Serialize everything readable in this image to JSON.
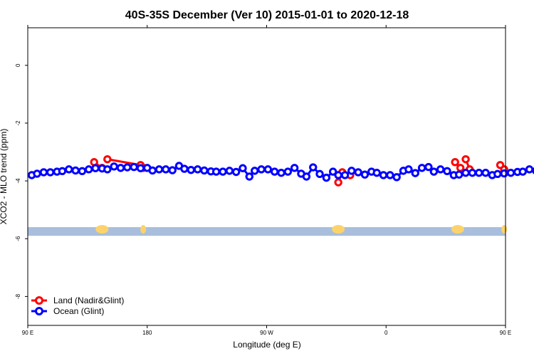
{
  "chart_data": {
    "type": "scatter",
    "title": "40S-35S December (Ver 10)   2015-01-01 to 2020-12-18",
    "xlabel": "Longitude (deg E)",
    "ylabel": "XCO2 - MLO trend (ppm)",
    "xlim": [
      90,
      450
    ],
    "ylim": [
      -9,
      1.3
    ],
    "x_ticks": [
      {
        "value": 90,
        "label": "90 E"
      },
      {
        "value": 180,
        "label": "180"
      },
      {
        "value": 270,
        "label": "90 W"
      },
      {
        "value": 360,
        "label": "0"
      },
      {
        "value": 450,
        "label": "90 E"
      }
    ],
    "x_ticks_top": [
      90,
      180,
      270,
      360,
      450
    ],
    "y_ticks": [
      {
        "value": 0,
        "label": "0"
      },
      {
        "value": -2,
        "label": "-2"
      },
      {
        "value": -4,
        "label": "-4"
      },
      {
        "value": -6,
        "label": "-6"
      },
      {
        "value": -8,
        "label": "-8"
      }
    ],
    "grid": false,
    "legend_position": "bottom-left",
    "colors": {
      "land": "#ff0000",
      "ocean": "#0000ff",
      "map_ocean": "#a8bedc",
      "map_land": "#fcd36b"
    },
    "map_strip": {
      "y_top": -5.6,
      "y_bottom": -5.9,
      "land_centers": [
        146,
        177,
        324,
        414,
        449
      ]
    },
    "series": [
      {
        "name": "Land (Nadir&Glint)",
        "key": "land",
        "segments": [
          [
            [
              140,
              -3.35
            ],
            [
              146,
              -3.55
            ]
          ],
          [
            [
              150,
              -3.25
            ],
            [
              175,
              -3.45
            ],
            [
              177,
              -3.55
            ]
          ],
          [
            [
              324,
              -4.05
            ],
            [
              327,
              -3.7
            ],
            [
              333,
              -3.8
            ]
          ],
          [
            [
              412,
              -3.35
            ],
            [
              416,
              -3.55
            ]
          ],
          [
            [
              420,
              -3.25
            ],
            [
              423,
              -3.6
            ]
          ],
          [
            [
              446,
              -3.45
            ],
            [
              449,
              -3.6
            ]
          ]
        ]
      },
      {
        "name": "Ocean (Glint)",
        "key": "ocean",
        "points": [
          [
            93,
            -3.8
          ],
          [
            97,
            -3.75
          ],
          [
            102,
            -3.7
          ],
          [
            107,
            -3.7
          ],
          [
            112,
            -3.68
          ],
          [
            116,
            -3.66
          ],
          [
            121,
            -3.6
          ],
          [
            126,
            -3.64
          ],
          [
            131,
            -3.66
          ],
          [
            136,
            -3.6
          ],
          [
            141,
            -3.56
          ],
          [
            146,
            -3.57
          ],
          [
            150,
            -3.6
          ],
          [
            155,
            -3.5
          ],
          [
            160,
            -3.55
          ],
          [
            165,
            -3.53
          ],
          [
            170,
            -3.52
          ],
          [
            175,
            -3.56
          ],
          [
            180,
            -3.55
          ],
          [
            184,
            -3.64
          ],
          [
            189,
            -3.6
          ],
          [
            194,
            -3.6
          ],
          [
            199,
            -3.63
          ],
          [
            204,
            -3.48
          ],
          [
            208,
            -3.58
          ],
          [
            213,
            -3.62
          ],
          [
            218,
            -3.6
          ],
          [
            223,
            -3.64
          ],
          [
            228,
            -3.67
          ],
          [
            232,
            -3.68
          ],
          [
            237,
            -3.68
          ],
          [
            242,
            -3.65
          ],
          [
            247,
            -3.69
          ],
          [
            252,
            -3.56
          ],
          [
            257,
            -3.85
          ],
          [
            261,
            -3.65
          ],
          [
            266,
            -3.6
          ],
          [
            271,
            -3.6
          ],
          [
            276,
            -3.68
          ],
          [
            281,
            -3.72
          ],
          [
            286,
            -3.68
          ],
          [
            291,
            -3.55
          ],
          [
            296,
            -3.75
          ],
          [
            300,
            -3.85
          ],
          [
            305,
            -3.53
          ],
          [
            310,
            -3.76
          ],
          [
            315,
            -3.89
          ],
          [
            320,
            -3.68
          ],
          [
            324,
            -3.8
          ],
          [
            329,
            -3.8
          ],
          [
            334,
            -3.65
          ],
          [
            339,
            -3.7
          ],
          [
            344,
            -3.78
          ],
          [
            349,
            -3.68
          ],
          [
            353,
            -3.72
          ],
          [
            358,
            -3.8
          ],
          [
            363,
            -3.8
          ],
          [
            368,
            -3.87
          ],
          [
            373,
            -3.65
          ],
          [
            377,
            -3.6
          ],
          [
            382,
            -3.73
          ],
          [
            387,
            -3.55
          ],
          [
            392,
            -3.52
          ],
          [
            396,
            -3.68
          ],
          [
            401,
            -3.6
          ],
          [
            406,
            -3.66
          ],
          [
            411,
            -3.8
          ],
          [
            415,
            -3.78
          ],
          [
            420,
            -3.72
          ],
          [
            425,
            -3.72
          ],
          [
            430,
            -3.72
          ],
          [
            435,
            -3.72
          ],
          [
            440,
            -3.8
          ],
          [
            444,
            -3.76
          ],
          [
            449,
            -3.74
          ],
          [
            454,
            -3.72
          ],
          [
            459,
            -3.69
          ],
          [
            463,
            -3.68
          ],
          [
            468,
            -3.6
          ],
          [
            473,
            -3.65
          ],
          [
            478,
            -3.66
          ],
          [
            483,
            -3.55
          ],
          [
            487,
            -3.57
          ],
          [
            492,
            -3.59
          ],
          [
            497,
            -3.6
          ],
          [
            502,
            -3.48
          ],
          [
            507,
            -3.56
          ],
          [
            512,
            -3.53
          ],
          [
            516,
            -3.52
          ],
          [
            521,
            -3.54
          ]
        ]
      }
    ]
  }
}
